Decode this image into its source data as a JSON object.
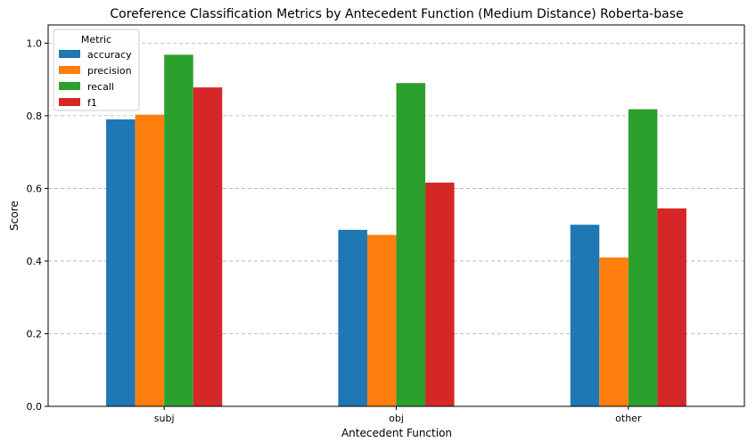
{
  "chart_data": {
    "type": "bar",
    "title": "Coreference Classification Metrics by Antecedent Function (Medium Distance) Roberta-base",
    "xlabel": "Antecedent Function",
    "ylabel": "Score",
    "categories": [
      "subj",
      "obj",
      "other"
    ],
    "ylim": [
      0,
      1.05
    ],
    "yticks": [
      "0.0",
      "0.2",
      "0.4",
      "0.6",
      "0.8",
      "1.0"
    ],
    "grid": "y, dashed",
    "legend": {
      "title": "Metric",
      "position": "top-left"
    },
    "series": [
      {
        "name": "accuracy",
        "color": "#1f77b4",
        "values": [
          0.79,
          0.486,
          0.5
        ]
      },
      {
        "name": "precision",
        "color": "#ff7f0e",
        "values": [
          0.803,
          0.472,
          0.41
        ]
      },
      {
        "name": "recall",
        "color": "#2ca02c",
        "values": [
          0.968,
          0.89,
          0.818
        ]
      },
      {
        "name": "f1",
        "color": "#d62728",
        "values": [
          0.878,
          0.616,
          0.545
        ]
      }
    ]
  }
}
